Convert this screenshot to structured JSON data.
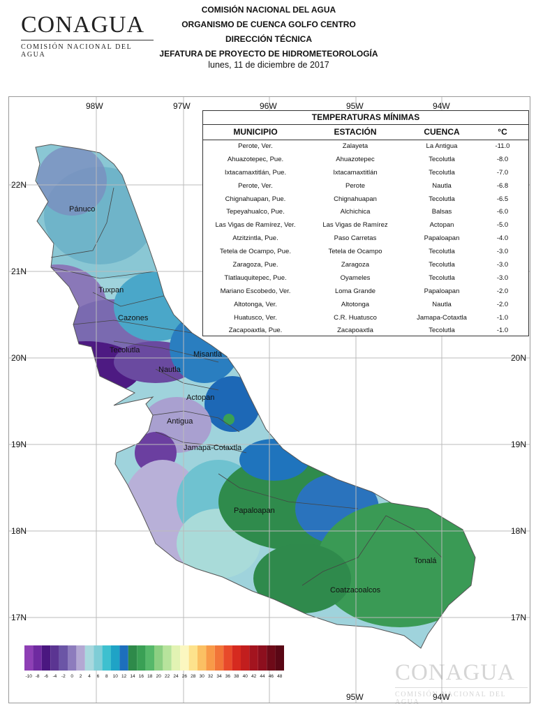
{
  "header": {
    "logo_word": "CONAGUA",
    "logo_sub": "COMISIÓN NACIONAL DEL AGUA",
    "lines": [
      "COMISIÓN NACIONAL DEL AGUA",
      "ORGANISMO DE CUENCA GOLFO CENTRO",
      "DIRECCIÓN TÉCNICA",
      "JEFATURA DE PROYECTO DE HIDROMETEOROLOGÍA"
    ],
    "date": "lunes, 11 de diciembre de 2017"
  },
  "map": {
    "lon_labels_top": [
      "98W",
      "97W",
      "96W",
      "95W",
      "94W"
    ],
    "lon_labels_bottom": [
      "95W",
      "94W"
    ],
    "lat_labels": [
      "22N",
      "21N",
      "20N",
      "19N",
      "18N",
      "17N"
    ],
    "basins": [
      "Pánuco",
      "Tuxpan",
      "Cazones",
      "Tecolutla",
      "Nautla",
      "Misantla",
      "Actopan",
      "Antigua",
      "Jamapa-Cotaxtla",
      "Papaloapan",
      "Coatzacoalcos",
      "Tonalá"
    ]
  },
  "table": {
    "title": "TEMPERATURAS MÍNIMAS",
    "headers": [
      "MUNICIPIO",
      "ESTACIÓN",
      "CUENCA",
      "°C"
    ],
    "rows": [
      [
        "Perote, Ver.",
        "Zalayeta",
        "La Antigua",
        "-11.0"
      ],
      [
        "Ahuazotepec, Pue.",
        "Ahuazotepec",
        "Tecolutla",
        "-8.0"
      ],
      [
        "Ixtacamaxtitlán, Pue.",
        "Ixtacamaxtitlán",
        "Tecolutla",
        "-7.0"
      ],
      [
        "Perote, Ver.",
        "Perote",
        "Nautla",
        "-6.8"
      ],
      [
        "Chignahuapan, Pue.",
        "Chignahuapan",
        "Tecolutla",
        "-6.5"
      ],
      [
        "Tepeyahualco, Pue.",
        "Alchichica",
        "Balsas",
        "-6.0"
      ],
      [
        "Las Vigas de Ramírez, Ver.",
        "Las Vigas de Ramírez",
        "Actopan",
        "-5.0"
      ],
      [
        "Atzitzintla, Pue.",
        "Paso Carretas",
        "Papaloapan",
        "-4.0"
      ],
      [
        "Tetela de Ocampo, Pue.",
        "Tetela de Ocampo",
        "Tecolutla",
        "-3.0"
      ],
      [
        "Zaragoza, Pue.",
        "Zaragoza",
        "Tecolutla",
        "-3.0"
      ],
      [
        "Tlatlauquitepec, Pue.",
        "Oyameles",
        "Tecolutla",
        "-3.0"
      ],
      [
        "Mariano Escobedo, Ver.",
        "Loma Grande",
        "Papaloapan",
        "-2.0"
      ],
      [
        "Altotonga, Ver.",
        "Altotonga",
        "Nautla",
        "-2.0"
      ],
      [
        "Huatusco, Ver.",
        "C.R. Huatusco",
        "Jamapa-Cotaxtla",
        "-1.0"
      ],
      [
        "Zacapoaxtla, Pue.",
        "Zacapoaxtla",
        "Tecolutla",
        "-1.0"
      ]
    ]
  },
  "legend": {
    "values": [
      "-10",
      "-8",
      "-6",
      "-4",
      "-2",
      "0",
      "2",
      "4",
      "6",
      "8",
      "10",
      "12",
      "14",
      "16",
      "18",
      "20",
      "22",
      "24",
      "26",
      "28",
      "30",
      "32",
      "34",
      "36",
      "38",
      "40",
      "42",
      "44",
      "46",
      "48"
    ],
    "colors": [
      "#8e3fb5",
      "#6f2aa0",
      "#4a1780",
      "#5b3592",
      "#6b55a6",
      "#8d7cbd",
      "#b3a8d3",
      "#a8d8de",
      "#7fcdd6",
      "#3ec0cf",
      "#1fa3c6",
      "#1d6fbd",
      "#2e8a4a",
      "#3aa055",
      "#56b86a",
      "#8ccf82",
      "#b7e39c",
      "#e2f3b3",
      "#fbf7c0",
      "#fde28c",
      "#fbc063",
      "#f89a48",
      "#f27538",
      "#e84a2a",
      "#d62a1f",
      "#c21e1e",
      "#a3141f",
      "#8d0f1e",
      "#6e0a18",
      "#5a0715"
    ]
  }
}
